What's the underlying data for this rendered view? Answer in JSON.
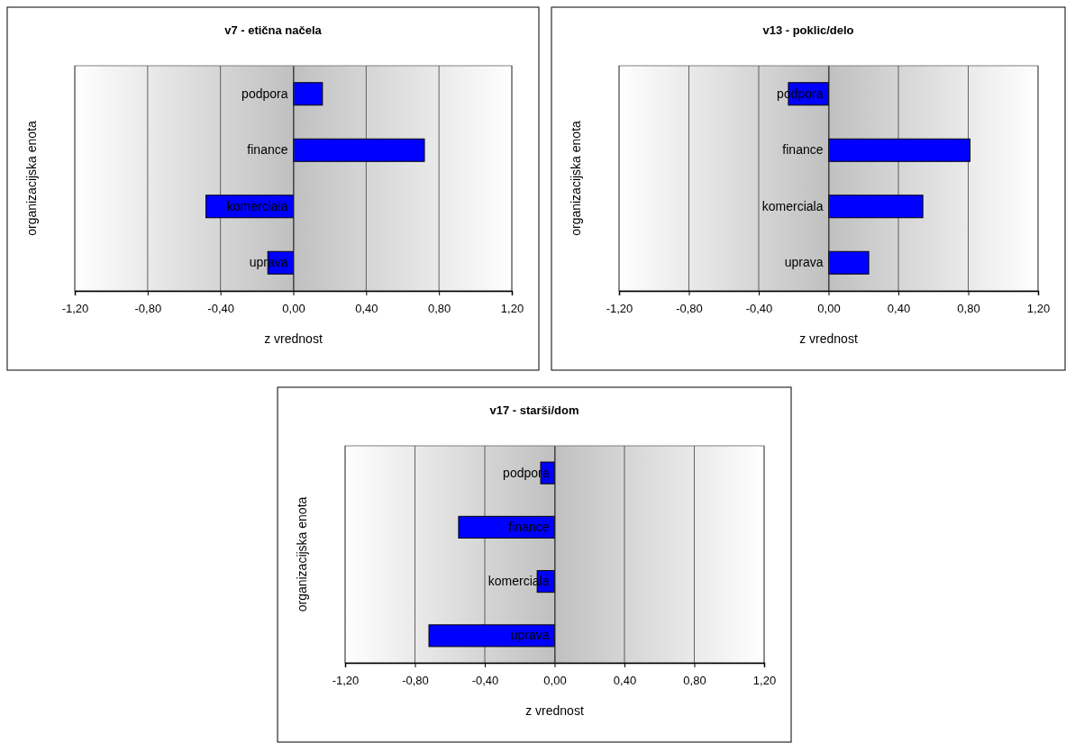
{
  "chart_data": [
    {
      "type": "bar",
      "orientation": "horizontal",
      "title": "v7 - etična načela",
      "xlabel": "z vrednost",
      "ylabel": "organizacijska enota",
      "categories": [
        "podpora",
        "finance",
        "komerciala",
        "uprava"
      ],
      "values": [
        0.16,
        0.72,
        -0.48,
        -0.14
      ],
      "color": "#0000ff",
      "xlim": [
        -1.2,
        1.2
      ],
      "xticks": [
        {
          "value": -1.2,
          "label": "-1,20"
        },
        {
          "value": -0.8,
          "label": "-0,80"
        },
        {
          "value": -0.4,
          "label": "-0,40"
        },
        {
          "value": 0,
          "label": "0,00"
        },
        {
          "value": 0.4,
          "label": "0,40"
        },
        {
          "value": 0.8,
          "label": "0,80"
        },
        {
          "value": 1.2,
          "label": "1,20"
        }
      ],
      "grid": "x"
    },
    {
      "type": "bar",
      "orientation": "horizontal",
      "title": "v13 - poklic/delo",
      "xlabel": "z vrednost",
      "ylabel": "organizacijska enota",
      "categories": [
        "podpora",
        "finance",
        "komerciala",
        "uprava"
      ],
      "values": [
        -0.23,
        0.81,
        0.54,
        0.23
      ],
      "color": "#0000ff",
      "xlim": [
        -1.2,
        1.2
      ],
      "xticks": [
        {
          "value": -1.2,
          "label": "-1,20"
        },
        {
          "value": -0.8,
          "label": "-0,80"
        },
        {
          "value": -0.4,
          "label": "-0,40"
        },
        {
          "value": 0,
          "label": "0,00"
        },
        {
          "value": 0.4,
          "label": "0,40"
        },
        {
          "value": 0.8,
          "label": "0,80"
        },
        {
          "value": 1.2,
          "label": "1,20"
        }
      ],
      "grid": "x"
    },
    {
      "type": "bar",
      "orientation": "horizontal",
      "title": "v17 - starši/dom",
      "xlabel": "z vrednost",
      "ylabel": "organizacijska enota",
      "categories": [
        "podpora",
        "finance",
        "komerciala",
        "uprava"
      ],
      "values": [
        -0.08,
        -0.55,
        -0.1,
        -0.72
      ],
      "color": "#0000ff",
      "xlim": [
        -1.2,
        1.2
      ],
      "xticks": [
        {
          "value": -1.2,
          "label": "-1,20"
        },
        {
          "value": -0.8,
          "label": "-0,80"
        },
        {
          "value": -0.4,
          "label": "-0,40"
        },
        {
          "value": 0,
          "label": "0,00"
        },
        {
          "value": 0.4,
          "label": "0,40"
        },
        {
          "value": 0.8,
          "label": "0,80"
        },
        {
          "value": 1.2,
          "label": "1,20"
        }
      ],
      "grid": "x"
    }
  ]
}
